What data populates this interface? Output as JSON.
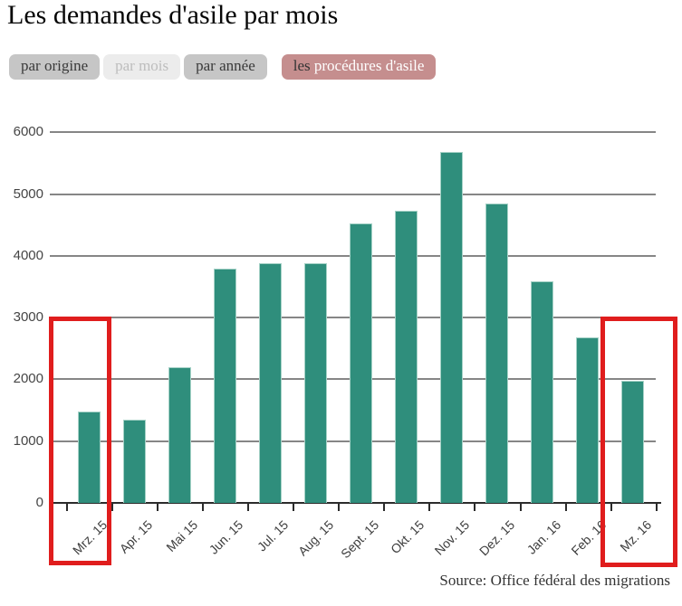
{
  "title": "Les demandes d'asile par mois",
  "tabs": [
    {
      "label": "par origine",
      "state": "default"
    },
    {
      "label": "par mois",
      "state": "active"
    },
    {
      "label": "par année",
      "state": "default"
    },
    {
      "prefix": "les ",
      "label": "procédures d'asile",
      "state": "highlight"
    }
  ],
  "source": "Source: Office fédéral des migrations",
  "colors": {
    "bar": "#2f8e7c",
    "bar_edge": "#a6d2c7",
    "gridline": "#868686",
    "axis": "#2b2b2b",
    "highlight_red": "#e01d1d",
    "tab_gray_bg": "#c6c6c6",
    "tab_active_bg": "#ececec",
    "tab_pink_bg": "#c58e8e"
  },
  "chart_data": {
    "type": "bar",
    "categories": [
      "Mrz. 15",
      "Apr. 15",
      "Mai 15",
      "Jun. 15",
      "Jul. 15",
      "Aug. 15",
      "Sept. 15",
      "Okt. 15",
      "Nov. 15",
      "Dez. 15",
      "Jan. 16",
      "Feb. 16",
      "Mz. 16"
    ],
    "values": [
      1480,
      1350,
      2190,
      3790,
      3880,
      3880,
      4530,
      4730,
      5680,
      4850,
      3590,
      2680,
      1980
    ],
    "title": "Les demandes d'asile par mois",
    "xlabel": "",
    "ylabel": "",
    "ylim": [
      0,
      6000
    ],
    "yticks": [
      0,
      1000,
      2000,
      3000,
      4000,
      5000,
      6000
    ],
    "grid": true,
    "legend": false,
    "annotations": [
      {
        "type": "highlight-box",
        "target_category": "Mrz. 15",
        "color": "#e01d1d"
      },
      {
        "type": "highlight-box",
        "target_category": "Mz. 16",
        "color": "#e01d1d"
      }
    ]
  }
}
